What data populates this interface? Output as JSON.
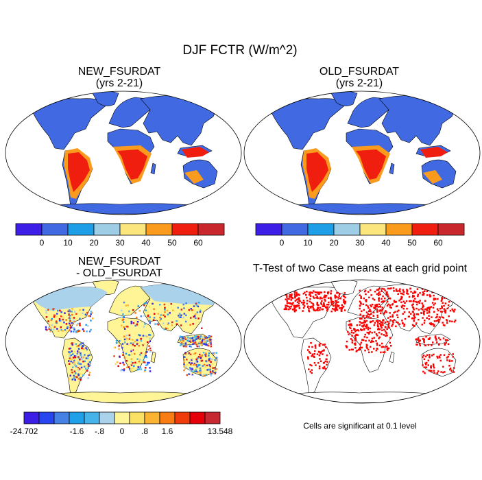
{
  "main_title": "DJF FCTR (W/m^2)",
  "panels": {
    "new": {
      "title": "NEW_FSURDAT",
      "subtitle": "(yrs 2-21)"
    },
    "old": {
      "title": "OLD_FSURDAT",
      "subtitle": "(yrs 2-21)"
    },
    "diff": {
      "title": "NEW_FSURDAT",
      "subtitle": "- OLD_FSURDAT"
    },
    "ttest": {
      "title": "T-Test of two Case means at each grid point",
      "note": "Cells are significant at 0.1 level"
    }
  },
  "colorbar_top": {
    "colors": [
      "#3c1ee6",
      "#4169e1",
      "#1e9ee6",
      "#9ecde6",
      "#fae67d",
      "#fa9b1e",
      "#f01e0f",
      "#c8282d"
    ],
    "labels": [
      "0",
      "10",
      "20",
      "30",
      "40",
      "50",
      "60"
    ]
  },
  "colorbar_diff": {
    "colors": [
      "#3c1ee6",
      "#2846f0",
      "#4682e6",
      "#1ea0eb",
      "#46b4eb",
      "#aad2eb",
      "#fff596",
      "#fae164",
      "#fab432",
      "#fa7d14",
      "#f03c0a",
      "#e6000a",
      "#c82832"
    ],
    "labels": [
      "-24.702",
      "-1.6",
      "-.8",
      "0",
      ".8",
      "1.6",
      "13.548"
    ]
  },
  "map_colors": {
    "land_low": "#4169e1",
    "tropics_high": "#f01e0f",
    "tropics_edge": "#fa9b1e",
    "diff_land": "#fff596",
    "diff_antarctica": "#fff596",
    "diff_high_lat": "#aad2eb",
    "ttest_sig": "#ff0000"
  }
}
